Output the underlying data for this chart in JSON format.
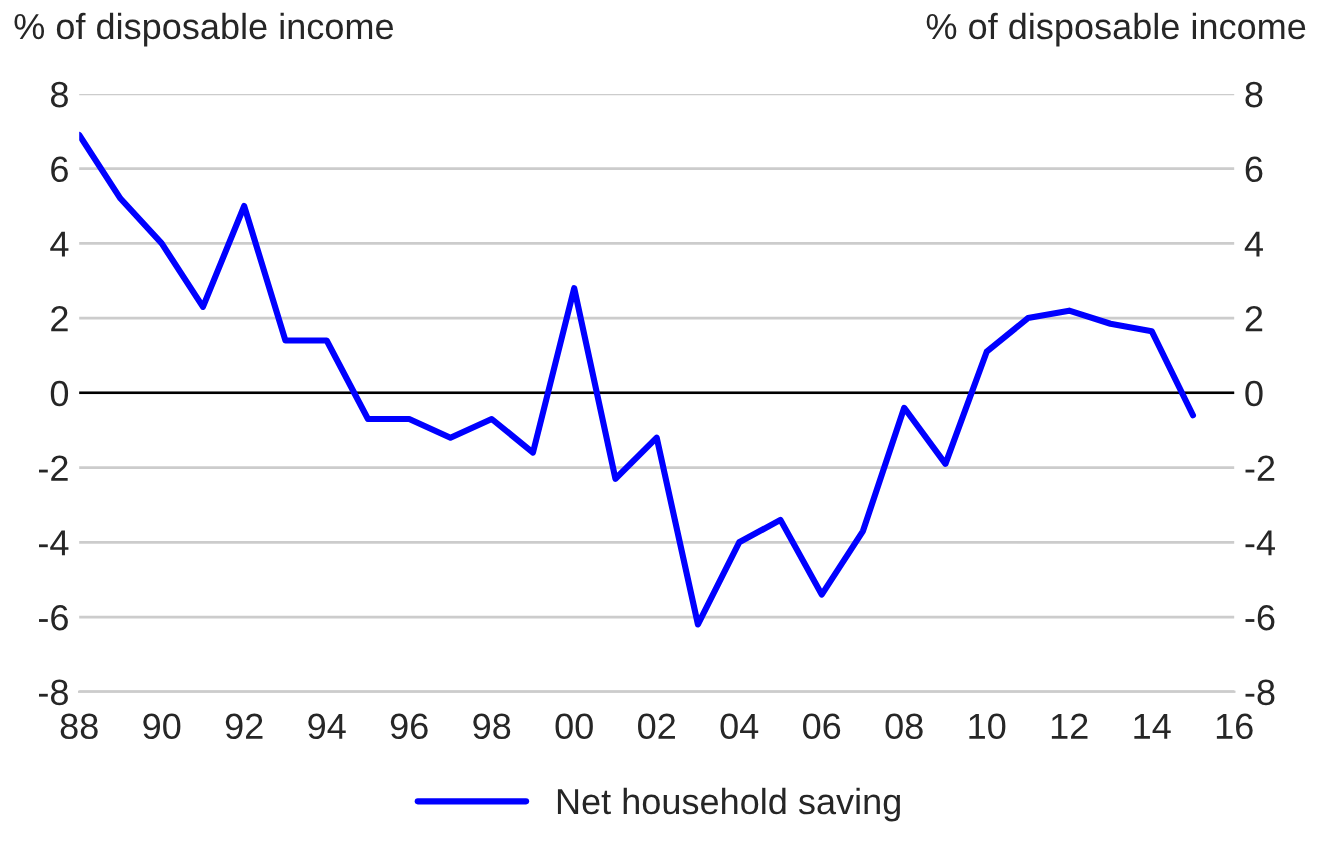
{
  "chart_data": {
    "type": "line",
    "ylabel": "% of disposable income",
    "y2label": "% of disposable income",
    "x": [
      1988,
      1989,
      1990,
      1991,
      1992,
      1993,
      1994,
      1995,
      1996,
      1997,
      1998,
      1999,
      2000,
      2001,
      2002,
      2003,
      2004,
      2005,
      2006,
      2007,
      2008,
      2009,
      2010,
      2011,
      2012,
      2013,
      2014,
      2015
    ],
    "series": [
      {
        "name": "Net household saving",
        "color": "#0000ff",
        "values": [
          6.9,
          5.2,
          4.0,
          2.3,
          5.0,
          1.4,
          1.4,
          -0.7,
          -0.7,
          -1.2,
          -0.7,
          -1.6,
          2.8,
          -2.3,
          -1.2,
          -6.2,
          -4.0,
          -3.4,
          -5.4,
          -3.7,
          -0.4,
          -1.9,
          1.1,
          2.0,
          2.2,
          1.85,
          1.65,
          -0.6
        ]
      }
    ],
    "xlim": [
      1988,
      2016
    ],
    "xticks": [
      {
        "value": 1988,
        "label": "88"
      },
      {
        "value": 1990,
        "label": "90"
      },
      {
        "value": 1992,
        "label": "92"
      },
      {
        "value": 1994,
        "label": "94"
      },
      {
        "value": 1996,
        "label": "96"
      },
      {
        "value": 1998,
        "label": "98"
      },
      {
        "value": 2000,
        "label": "00"
      },
      {
        "value": 2002,
        "label": "02"
      },
      {
        "value": 2004,
        "label": "04"
      },
      {
        "value": 2006,
        "label": "06"
      },
      {
        "value": 2008,
        "label": "08"
      },
      {
        "value": 2010,
        "label": "10"
      },
      {
        "value": 2012,
        "label": "12"
      },
      {
        "value": 2014,
        "label": "14"
      },
      {
        "value": 2016,
        "label": "16"
      }
    ],
    "ylim": [
      -8,
      8
    ],
    "yticks": [
      -8,
      -6,
      -4,
      -2,
      0,
      2,
      4,
      6,
      8
    ],
    "y2lim": [
      -8,
      8
    ],
    "y2ticks": [
      -8,
      -6,
      -4,
      -2,
      0,
      2,
      4,
      6,
      8
    ],
    "ref_lines": [
      {
        "axis": "y",
        "value": 0,
        "color": "#000000"
      }
    ],
    "grid": "y",
    "legend": "bottom",
    "line_style": "solid"
  }
}
